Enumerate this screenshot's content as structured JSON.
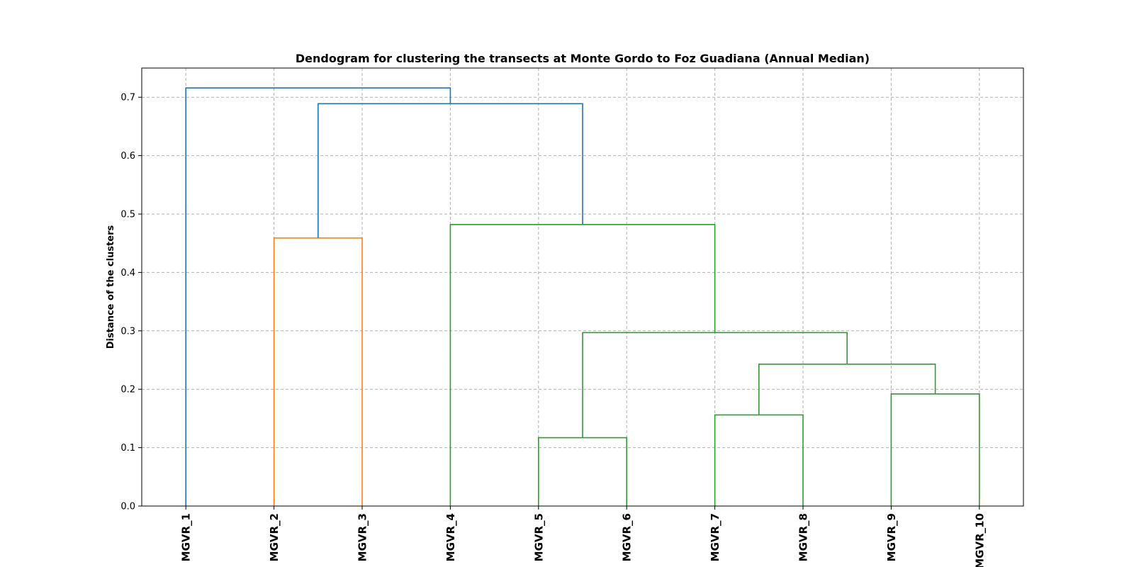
{
  "chart_data": {
    "type": "dendrogram",
    "title": "Dendogram for clustering the transects at Monte Gordo to Foz Guadiana (Annual Median)",
    "xlabel": "",
    "ylabel": "Distance of the clusters",
    "ylim": [
      0.0,
      0.75
    ],
    "yticks": [
      "0.0",
      "0.1",
      "0.2",
      "0.3",
      "0.4",
      "0.5",
      "0.6",
      "0.7"
    ],
    "grid": true,
    "leaves": [
      "MGVR_1",
      "MGVR_2",
      "MGVR_3",
      "MGVR_4",
      "MGVR_5",
      "MGVR_6",
      "MGVR_7",
      "MGVR_8",
      "MGVR_9",
      "MGVR_10"
    ],
    "colors": {
      "c0": "#1f77b4",
      "c1": "#ff7f0e",
      "c2": "#2ca02c"
    },
    "merges": [
      {
        "left": "MGVR_5",
        "right": "MGVR_6",
        "distance": 0.117,
        "color": "c2"
      },
      {
        "left": "MGVR_7",
        "right": "MGVR_8",
        "distance": 0.156,
        "color": "c2"
      },
      {
        "left": "MGVR_9",
        "right": "MGVR_10",
        "distance": 0.192,
        "color": "c2"
      },
      {
        "left": "{MGVR_7, MGVR_8}",
        "right": "{MGVR_9, MGVR_10}",
        "distance": 0.243,
        "color": "c2"
      },
      {
        "left": "{MGVR_5, MGVR_6}",
        "right": "{MGVR_7 … MGVR_10}",
        "distance": 0.297,
        "color": "c2"
      },
      {
        "left": "MGVR_2",
        "right": "MGVR_3",
        "distance": 0.459,
        "color": "c1"
      },
      {
        "left": "MGVR_4",
        "right": "{MGVR_5 … MGVR_10}",
        "distance": 0.482,
        "color": "c2"
      },
      {
        "left": "{MGVR_2, MGVR_3}",
        "right": "{MGVR_4 … MGVR_10}",
        "distance": 0.689,
        "color": "c0"
      },
      {
        "left": "MGVR_1",
        "right": "{MGVR_2 … MGVR_10}",
        "distance": 0.716,
        "color": "c0"
      }
    ]
  }
}
